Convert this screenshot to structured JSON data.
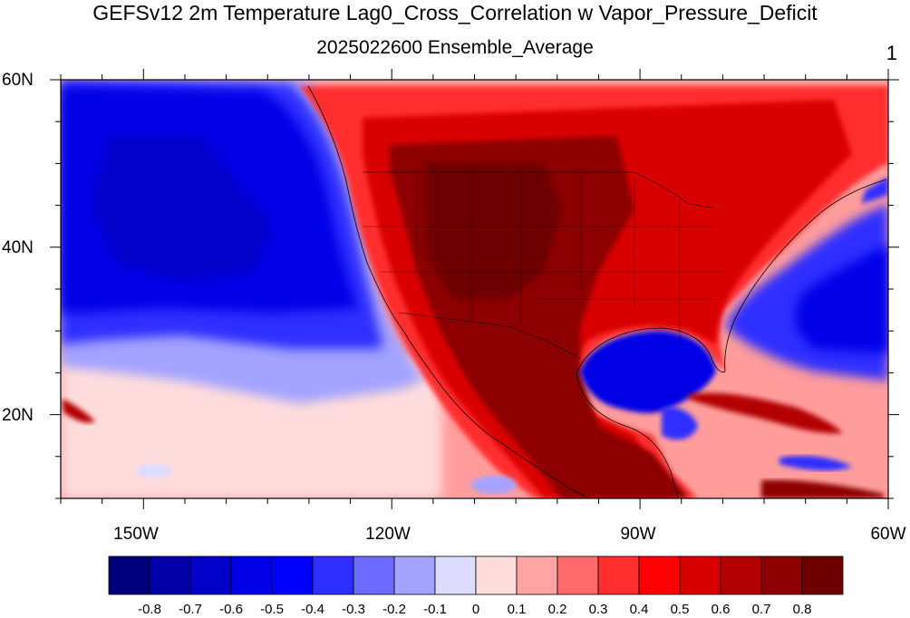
{
  "title": "GEFSv12 2m Temperature Lag0_Cross_Correlation w Vapor_Pressure_Deficit",
  "subtitle": "2025022600 Ensemble_Average",
  "panel_number": "1",
  "map": {
    "lat_labels": [
      "60N",
      "40N",
      "20N"
    ],
    "lon_labels": [
      "150W",
      "120W",
      "90W",
      "60W"
    ],
    "extent": {
      "lon_min": -160,
      "lon_max": -60,
      "lat_min": 10,
      "lat_max": 60
    }
  },
  "colorbar": {
    "labels": [
      "-0.8",
      "-0.7",
      "-0.6",
      "-0.5",
      "-0.4",
      "-0.3",
      "-0.2",
      "-0.1",
      "0",
      "0.1",
      "0.2",
      "0.3",
      "0.4",
      "0.5",
      "0.6",
      "0.7",
      "0.8"
    ],
    "colors": [
      "#00007c",
      "#0000a6",
      "#0000c8",
      "#0000e6",
      "#0000ff",
      "#2e2eff",
      "#6b6bff",
      "#a3a3ff",
      "#dcdcff",
      "#ffdcdc",
      "#ffa3a3",
      "#ff6b6b",
      "#ff2e2e",
      "#ff0000",
      "#d90000",
      "#b30000",
      "#8c0000",
      "#6e0000"
    ]
  }
}
